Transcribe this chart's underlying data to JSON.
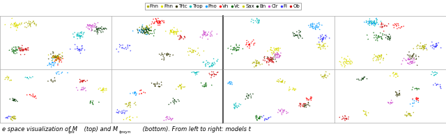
{
  "legend_items": [
    {
      "label": "Fhn",
      "color": "#aaaa00"
    },
    {
      "label": "Fhn",
      "color": "#dddd00"
    },
    {
      "label": "Trtc",
      "color": "#333300"
    },
    {
      "label": "Trop",
      "color": "#00bbbb"
    },
    {
      "label": "Pno",
      "color": "#0099ff"
    },
    {
      "label": "Vn",
      "color": "#ff0000"
    },
    {
      "label": "Vc",
      "color": "#006600"
    },
    {
      "label": "Sax",
      "color": "#cccc00"
    },
    {
      "label": "Bn",
      "color": "#003300"
    },
    {
      "label": "Clr",
      "color": "#cc44cc"
    },
    {
      "label": "Fl",
      "color": "#3333ff"
    },
    {
      "label": "Ob",
      "color": "#cc0000"
    }
  ],
  "background_color": "#ffffff",
  "panel_bg": "#ffffff",
  "caption_text": "e space visualization of M",
  "caption_sub1": "tps",
  "caption_mid": " (top) and M",
  "caption_sub2": "tpsyn",
  "caption_end": " (bottom). From left to right: models t"
}
